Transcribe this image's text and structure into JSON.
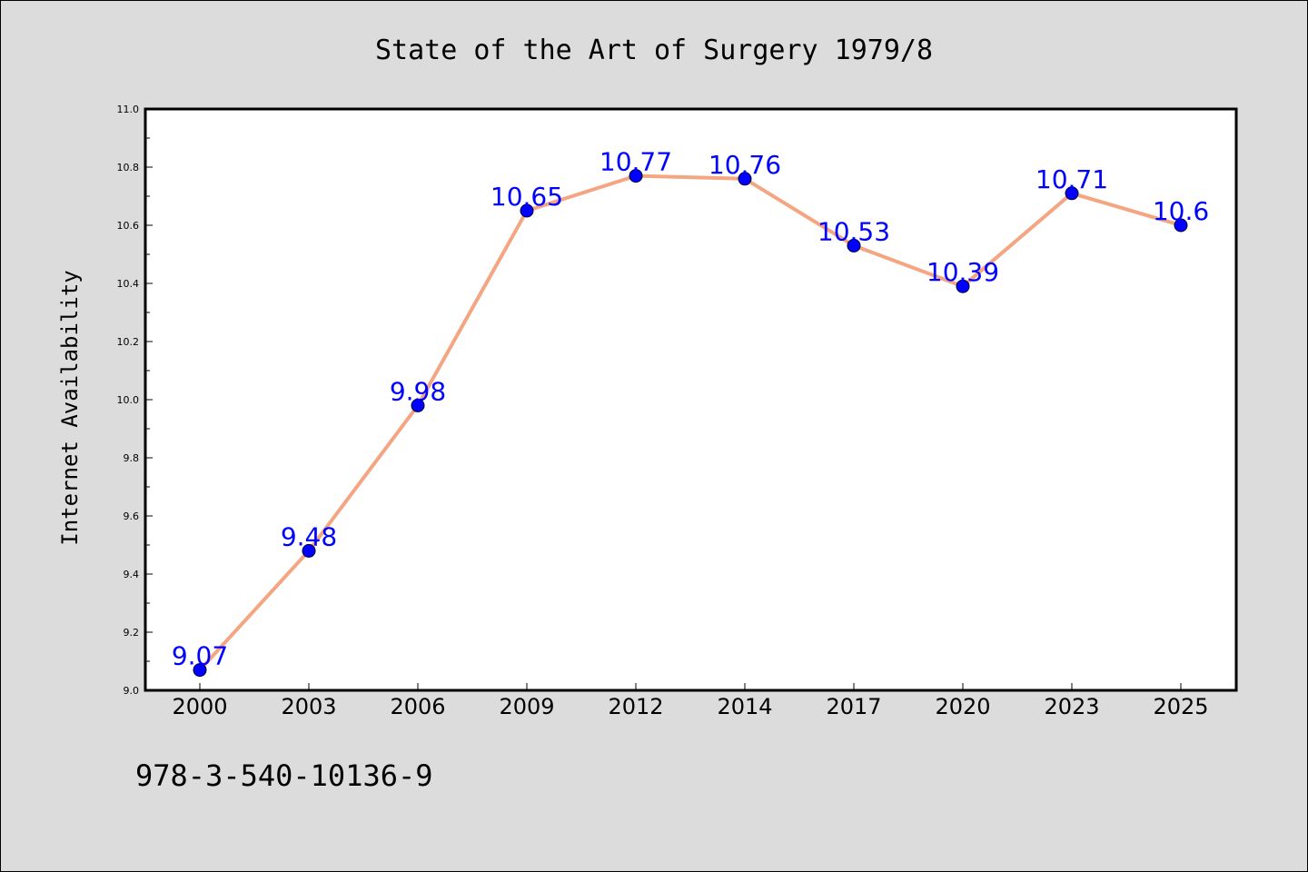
{
  "chart_data": {
    "type": "line",
    "title": "State of the Art of Surgery 1979/8",
    "xlabel": "",
    "ylabel": "Internet Availability",
    "categories": [
      "2000",
      "2003",
      "2006",
      "2009",
      "2012",
      "2014",
      "2017",
      "2020",
      "2023",
      "2025"
    ],
    "series": [
      {
        "values": [
          9.07,
          9.48,
          9.98,
          10.65,
          10.77,
          10.76,
          10.53,
          10.39,
          10.71,
          10.6
        ],
        "labels": [
          "9.07",
          "9.48",
          "9.98",
          "10.65",
          "10.77",
          "10.76",
          "10.53",
          "10.39",
          "10.71",
          "10.6"
        ],
        "line_color": "#f4a582",
        "marker_color": "#0000ff",
        "label_color": "#0000ff"
      }
    ],
    "ylim": [
      9.0,
      11.0
    ],
    "yticks": [
      "9.0",
      "9.2",
      "9.4",
      "9.6",
      "9.8",
      "10.0",
      "10.2",
      "10.4",
      "10.6",
      "10.8",
      "11.0"
    ],
    "grid": false,
    "legend": "none"
  },
  "footer": {
    "text": "978-3-540-10136-9"
  },
  "colors": {
    "background": "#dcdcdc",
    "plot_background": "#ffffff"
  }
}
